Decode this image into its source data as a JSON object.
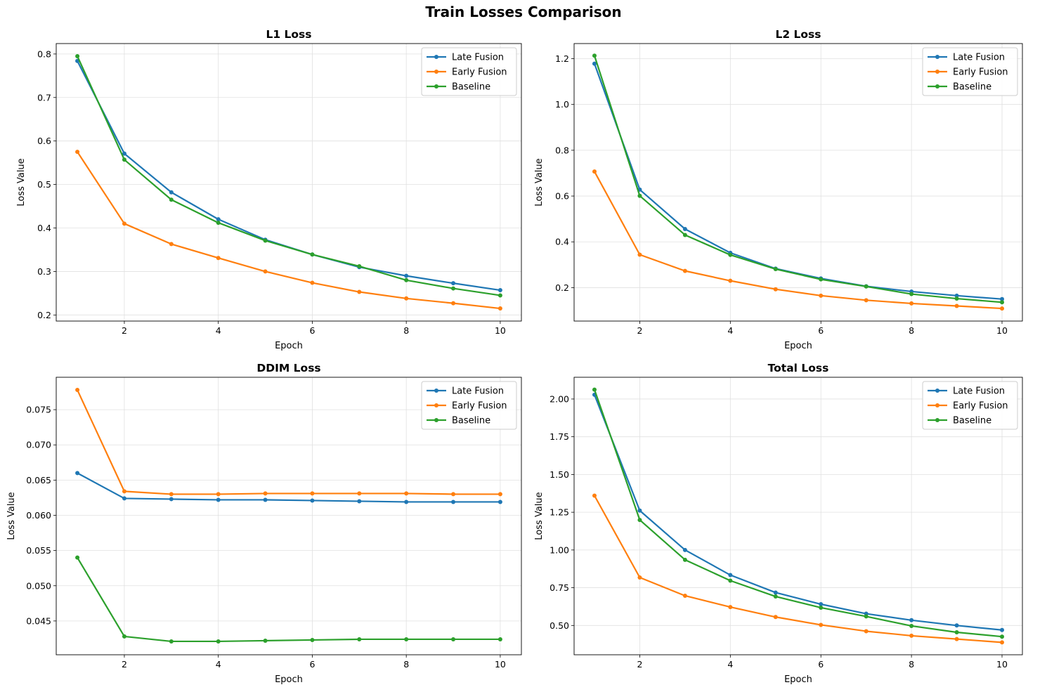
{
  "figure": {
    "title": "Train Losses Comparison"
  },
  "colors": {
    "late": "#1f77b4",
    "early": "#ff7f0e",
    "baseline": "#2ca02c",
    "grid": "#e0e0e0"
  },
  "chart_data": [
    {
      "type": "line",
      "title": "L1 Loss",
      "xlabel": "Epoch",
      "ylabel": "Loss Value",
      "x": [
        1,
        2,
        3,
        4,
        5,
        6,
        7,
        8,
        9,
        10
      ],
      "xlim": [
        0.55,
        10.45
      ],
      "ylim": [
        0.186,
        0.824
      ],
      "xticks": [
        2,
        4,
        6,
        8,
        10
      ],
      "yticks": [
        0.2,
        0.3,
        0.4,
        0.5,
        0.6,
        0.7,
        0.8
      ],
      "ytick_labels": [
        "0.2",
        "0.3",
        "0.4",
        "0.5",
        "0.6",
        "0.7",
        "0.8"
      ],
      "grid": true,
      "legend": "upper right",
      "series": [
        {
          "name": "Late Fusion",
          "color": "#1f77b4",
          "values": [
            0.784,
            0.571,
            0.482,
            0.42,
            0.373,
            0.339,
            0.31,
            0.29,
            0.273,
            0.257
          ]
        },
        {
          "name": "Early Fusion",
          "color": "#ff7f0e",
          "values": [
            0.575,
            0.41,
            0.363,
            0.331,
            0.3,
            0.274,
            0.253,
            0.238,
            0.227,
            0.215
          ]
        },
        {
          "name": "Baseline",
          "color": "#2ca02c",
          "values": [
            0.795,
            0.557,
            0.465,
            0.412,
            0.371,
            0.339,
            0.312,
            0.28,
            0.261,
            0.245
          ]
        }
      ]
    },
    {
      "type": "line",
      "title": "L2 Loss",
      "xlabel": "Epoch",
      "ylabel": "Loss Value",
      "x": [
        1,
        2,
        3,
        4,
        5,
        6,
        7,
        8,
        9,
        10
      ],
      "xlim": [
        0.55,
        10.45
      ],
      "ylim": [
        0.054,
        1.266
      ],
      "xticks": [
        2,
        4,
        6,
        8,
        10
      ],
      "yticks": [
        0.2,
        0.4,
        0.6,
        0.8,
        1.0,
        1.2
      ],
      "ytick_labels": [
        "0.2",
        "0.4",
        "0.6",
        "0.8",
        "1.0",
        "1.2"
      ],
      "grid": true,
      "legend": "upper right",
      "series": [
        {
          "name": "Late Fusion",
          "color": "#1f77b4",
          "values": [
            1.178,
            0.628,
            0.456,
            0.352,
            0.283,
            0.24,
            0.206,
            0.183,
            0.165,
            0.15
          ]
        },
        {
          "name": "Early Fusion",
          "color": "#ff7f0e",
          "values": [
            0.707,
            0.344,
            0.273,
            0.23,
            0.193,
            0.165,
            0.145,
            0.131,
            0.12,
            0.109
          ]
        },
        {
          "name": "Baseline",
          "color": "#2ca02c",
          "values": [
            1.213,
            0.601,
            0.43,
            0.343,
            0.281,
            0.236,
            0.205,
            0.172,
            0.152,
            0.136
          ]
        }
      ]
    },
    {
      "type": "line",
      "title": "DDIM Loss",
      "xlabel": "Epoch",
      "ylabel": "Loss Value",
      "x": [
        1,
        2,
        3,
        4,
        5,
        6,
        7,
        8,
        9,
        10
      ],
      "xlim": [
        0.55,
        10.45
      ],
      "ylim": [
        0.0402,
        0.0796
      ],
      "xticks": [
        2,
        4,
        6,
        8,
        10
      ],
      "yticks": [
        0.045,
        0.05,
        0.055,
        0.06,
        0.065,
        0.07,
        0.075
      ],
      "ytick_labels": [
        "0.045",
        "0.050",
        "0.055",
        "0.060",
        "0.065",
        "0.070",
        "0.075"
      ],
      "grid": true,
      "legend": "upper right",
      "series": [
        {
          "name": "Late Fusion",
          "color": "#1f77b4",
          "values": [
            0.066,
            0.0624,
            0.0623,
            0.0622,
            0.0622,
            0.0621,
            0.062,
            0.0619,
            0.0619,
            0.0619
          ]
        },
        {
          "name": "Early Fusion",
          "color": "#ff7f0e",
          "values": [
            0.0778,
            0.0634,
            0.063,
            0.063,
            0.0631,
            0.0631,
            0.0631,
            0.0631,
            0.063,
            0.063
          ]
        },
        {
          "name": "Baseline",
          "color": "#2ca02c",
          "values": [
            0.054,
            0.0428,
            0.0421,
            0.0421,
            0.0422,
            0.0423,
            0.0424,
            0.0424,
            0.0424,
            0.0424
          ]
        }
      ]
    },
    {
      "type": "line",
      "title": "Total Loss",
      "xlabel": "Epoch",
      "ylabel": "Loss Value",
      "x": [
        1,
        2,
        3,
        4,
        5,
        6,
        7,
        8,
        9,
        10
      ],
      "xlim": [
        0.55,
        10.45
      ],
      "ylim": [
        0.306,
        2.144
      ],
      "xticks": [
        2,
        4,
        6,
        8,
        10
      ],
      "yticks": [
        0.5,
        0.75,
        1.0,
        1.25,
        1.5,
        1.75,
        2.0
      ],
      "ytick_labels": [
        "0.50",
        "0.75",
        "1.00",
        "1.25",
        "1.50",
        "1.75",
        "2.00"
      ],
      "grid": true,
      "legend": "upper right",
      "series": [
        {
          "name": "Late Fusion",
          "color": "#1f77b4",
          "values": [
            2.028,
            1.261,
            1.0,
            0.834,
            0.718,
            0.641,
            0.578,
            0.535,
            0.5,
            0.47
          ]
        },
        {
          "name": "Early Fusion",
          "color": "#ff7f0e",
          "values": [
            1.36,
            0.818,
            0.697,
            0.622,
            0.556,
            0.504,
            0.462,
            0.432,
            0.41,
            0.388
          ]
        },
        {
          "name": "Baseline",
          "color": "#2ca02c",
          "values": [
            2.062,
            1.199,
            0.935,
            0.797,
            0.692,
            0.618,
            0.56,
            0.497,
            0.455,
            0.426
          ]
        }
      ]
    }
  ]
}
